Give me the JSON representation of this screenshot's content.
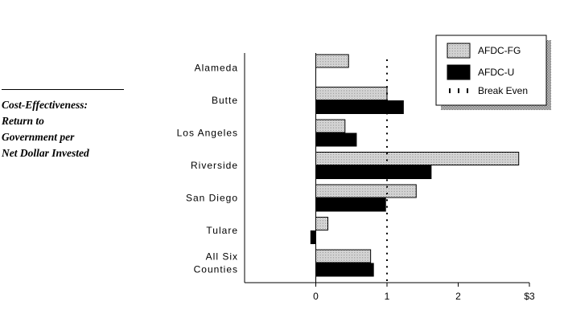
{
  "side_title": {
    "lines": [
      "Cost-Effectiveness:",
      "Return to",
      "Government per",
      "Net Dollar Invested"
    ]
  },
  "chart_data": {
    "type": "bar",
    "orientation": "horizontal",
    "categories": [
      [
        "Alameda"
      ],
      [
        "Butte"
      ],
      [
        "Los Angeles"
      ],
      [
        "Riverside"
      ],
      [
        "San Diego"
      ],
      [
        "Tulare"
      ],
      [
        "All Six",
        "Counties"
      ]
    ],
    "series": [
      {
        "name": "AFDC-FG",
        "pattern": "dotted-gray",
        "values": [
          0.46,
          1.0,
          0.41,
          2.85,
          1.41,
          0.17,
          0.77
        ]
      },
      {
        "name": "AFDC-U",
        "pattern": "solid-black",
        "values": [
          null,
          1.23,
          0.57,
          1.62,
          0.98,
          -0.07,
          0.81
        ]
      }
    ],
    "reference_line": {
      "name": "Break Even",
      "value": 1
    },
    "xlim": [
      -1,
      3
    ],
    "x_ticks": [
      {
        "value": 0,
        "label": "0"
      },
      {
        "value": 1,
        "label": "1"
      },
      {
        "value": 2,
        "label": "2"
      },
      {
        "value": 3,
        "label": "$3"
      }
    ],
    "legend_position": "top-right",
    "colors": {
      "AFDC-FG": "#d8d8d8",
      "AFDC-U": "#000000",
      "axis": "#000000"
    }
  }
}
